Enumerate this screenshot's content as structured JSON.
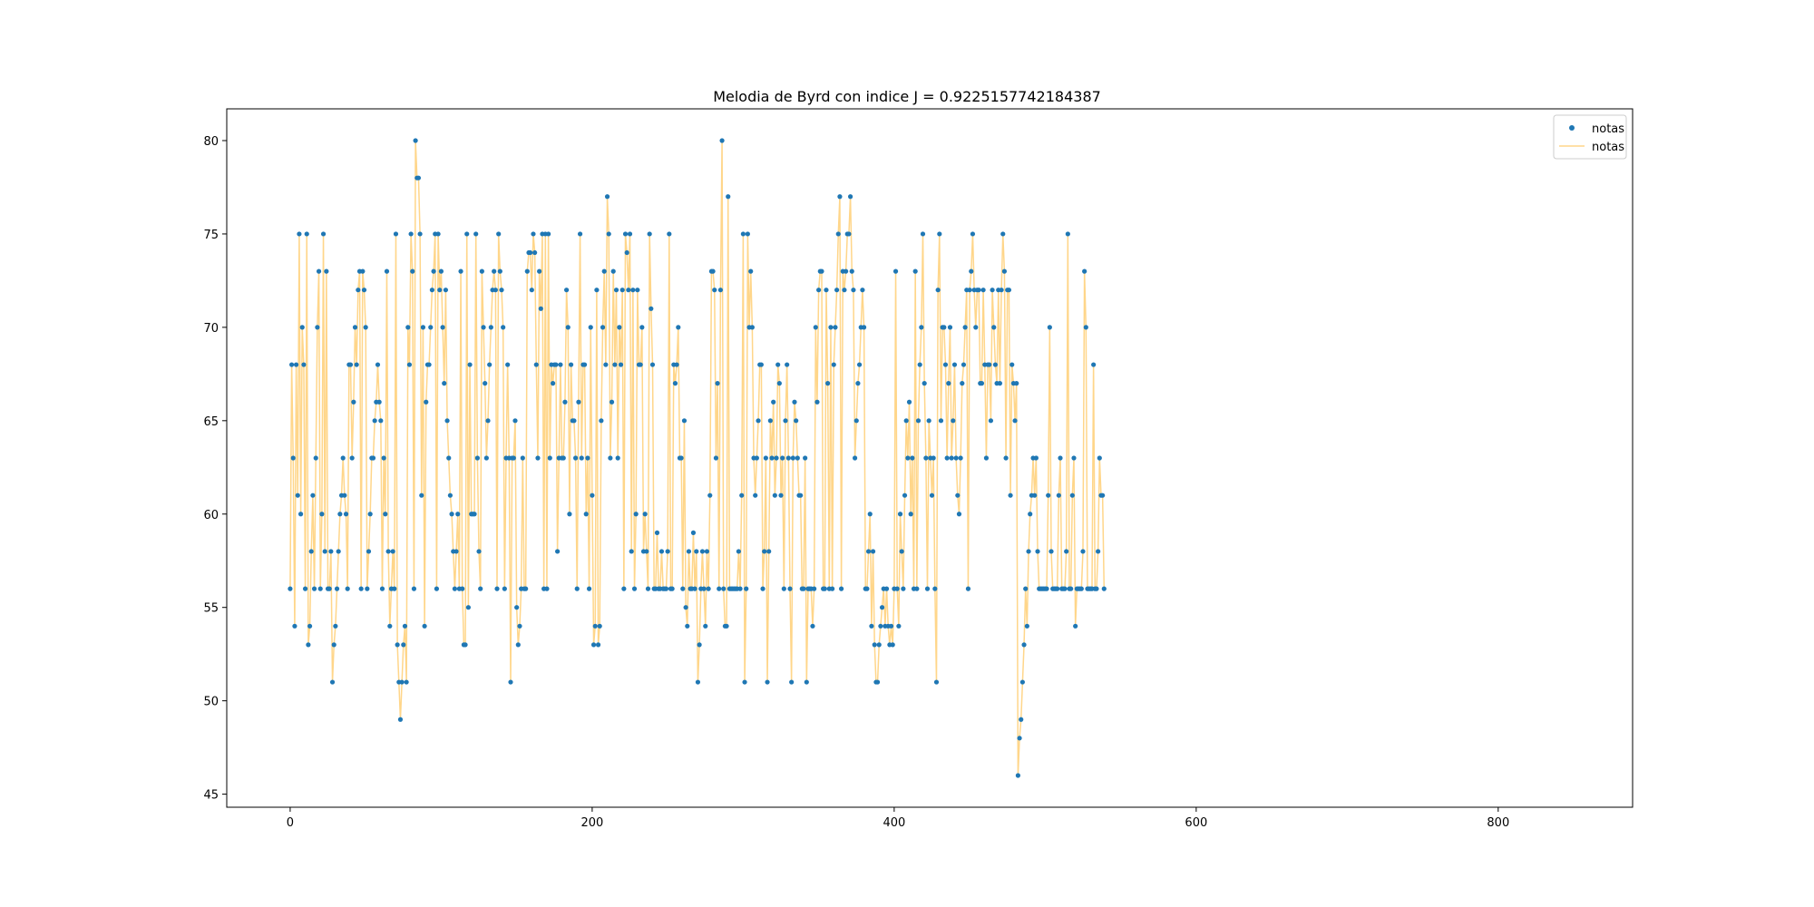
{
  "chart_data": {
    "type": "line",
    "title": "Melodia de Byrd con indice J = 0.9225157742184387",
    "xlabel": "",
    "ylabel": "",
    "xlim": [
      -42,
      889
    ],
    "ylim": [
      44.3,
      81.7
    ],
    "xticks": [
      0,
      200,
      400,
      600,
      800
    ],
    "yticks": [
      45,
      50,
      55,
      60,
      65,
      70,
      75,
      80
    ],
    "grid": false,
    "legend_position": "top-right",
    "colors": {
      "markers": "#1f77b4",
      "line": "#ffd68a"
    },
    "series": [
      {
        "name": "notas",
        "style": "markers"
      },
      {
        "name": "notas",
        "style": "line"
      }
    ],
    "x_start": 0,
    "y": [
      56,
      68,
      63,
      54,
      68,
      61,
      75,
      60,
      70,
      68,
      56,
      75,
      53,
      54,
      58,
      61,
      56,
      63,
      70,
      73,
      56,
      60,
      75,
      58,
      73,
      56,
      56,
      58,
      51,
      53,
      54,
      56,
      58,
      60,
      61,
      63,
      61,
      60,
      56,
      68,
      68,
      63,
      66,
      70,
      68,
      72,
      73,
      56,
      73,
      72,
      70,
      56,
      58,
      60,
      63,
      63,
      65,
      66,
      68,
      66,
      65,
      56,
      63,
      60,
      73,
      58,
      54,
      56,
      58,
      56,
      75,
      53,
      51,
      49,
      51,
      53,
      54,
      51,
      70,
      68,
      75,
      73,
      56,
      80,
      78,
      78,
      75,
      61,
      70,
      54,
      66,
      68,
      68,
      70,
      72,
      73,
      75,
      56,
      75,
      72,
      73,
      70,
      67,
      72,
      65,
      63,
      61,
      60,
      58,
      56,
      58,
      60,
      56,
      73,
      56,
      53,
      53,
      75,
      55,
      68,
      60,
      60,
      60,
      75,
      63,
      58,
      56,
      73,
      70,
      67,
      63,
      65,
      68,
      70,
      72,
      73,
      72,
      56,
      75,
      73,
      72,
      70,
      56,
      63,
      68,
      63,
      51,
      63,
      63,
      65,
      55,
      53,
      54,
      56,
      63,
      56,
      56,
      73,
      74,
      74,
      72,
      75,
      74,
      68,
      63,
      73,
      71,
      75,
      56,
      75,
      56,
      75,
      63,
      68,
      67,
      68,
      68,
      58,
      63,
      68,
      63,
      63,
      66,
      72,
      70,
      60,
      68,
      65,
      65,
      63,
      56,
      66,
      75,
      63,
      68,
      68,
      60,
      63,
      56,
      70,
      61,
      53,
      54,
      72,
      53,
      54,
      65,
      70,
      73,
      68,
      77,
      75,
      63,
      66,
      73,
      68,
      72,
      63,
      70,
      68,
      72,
      56,
      75,
      74,
      72,
      75,
      58,
      72,
      56,
      60,
      72,
      68,
      68,
      70,
      58,
      60,
      58,
      56,
      75,
      71,
      68,
      56,
      56,
      59,
      56,
      56,
      58,
      56,
      56,
      56,
      58,
      75,
      56,
      56,
      68,
      67,
      68,
      70,
      63,
      63,
      56,
      65,
      55,
      54,
      58,
      56,
      56,
      59,
      56,
      58,
      51,
      53,
      56,
      58,
      56,
      54,
      58,
      56,
      61,
      73,
      73,
      72,
      63,
      67,
      56,
      72,
      80,
      56,
      54,
      54,
      77,
      56,
      56,
      56,
      56,
      56,
      56,
      58,
      56,
      61,
      75,
      51,
      56,
      75,
      70,
      73,
      70,
      63,
      61,
      63,
      65,
      68,
      68,
      56,
      58,
      63,
      51,
      58,
      65,
      63,
      66,
      61,
      63,
      68,
      67,
      61,
      63,
      56,
      65,
      68,
      63,
      56,
      51,
      63,
      66,
      65,
      63,
      61,
      61,
      56,
      56,
      63,
      51,
      56,
      56,
      56,
      54,
      56,
      70,
      66,
      72,
      73,
      73,
      56,
      56,
      72,
      67,
      56,
      70,
      56,
      68,
      70,
      72,
      75,
      77,
      56,
      73,
      72,
      73,
      75,
      75,
      77,
      73,
      72,
      63,
      65,
      67,
      68,
      70,
      72,
      70,
      56,
      56,
      58,
      60,
      54,
      58,
      53,
      51,
      51,
      53,
      54,
      55,
      56,
      54,
      56,
      54,
      53,
      54,
      53,
      56,
      73,
      56,
      54,
      60,
      58,
      56,
      61,
      65,
      63,
      66,
      60,
      63,
      56,
      73,
      56,
      65,
      68,
      70,
      75,
      67,
      63,
      56,
      65,
      63,
      61,
      63,
      56,
      51,
      72,
      75,
      65,
      70,
      70,
      68,
      63,
      67,
      70,
      63,
      65,
      68,
      63,
      61,
      60,
      63,
      67,
      68,
      70,
      72,
      56,
      72,
      73,
      75,
      72,
      70,
      72,
      72,
      67,
      67,
      72,
      68,
      63,
      68,
      68,
      65,
      72,
      70,
      68,
      67,
      72,
      67,
      72,
      75,
      73,
      63,
      72,
      72,
      61,
      68,
      67,
      65,
      67,
      46,
      48,
      49,
      51,
      53,
      56,
      54,
      58,
      60,
      61,
      63,
      61,
      63,
      58,
      56,
      56,
      56,
      56,
      56,
      56,
      61,
      70,
      58,
      56,
      56,
      56,
      56,
      61,
      63,
      56,
      56,
      56,
      58,
      75,
      56,
      56,
      61,
      63,
      54,
      56,
      56,
      56,
      56,
      58,
      73,
      70,
      56,
      56,
      56,
      56,
      68,
      56,
      56,
      58,
      63,
      61,
      61,
      56
    ]
  }
}
